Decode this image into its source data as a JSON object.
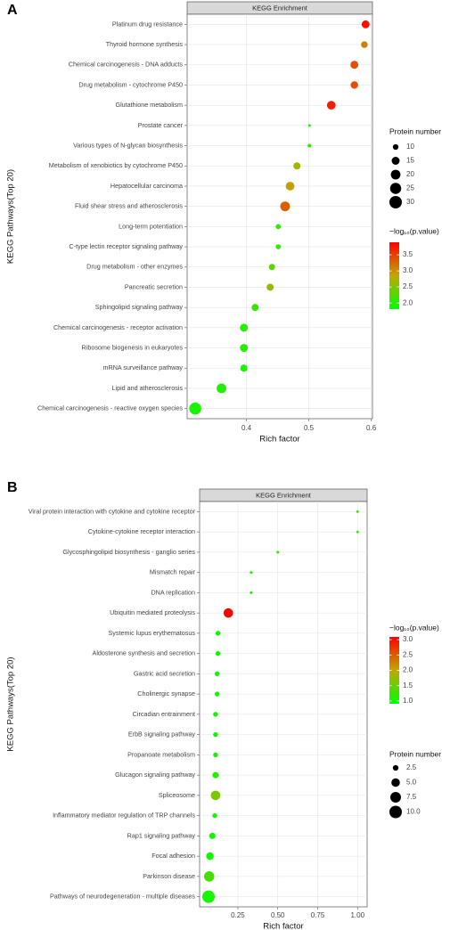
{
  "chart_data": [
    {
      "type": "scatter",
      "panel_label": "A",
      "title": "KEGG Enrichment",
      "x_label": "Rich factor",
      "y_label": "KEGG Pathways(Top 20)",
      "categories": [
        "Platinum drug resistance",
        "Thyroid hormone synthesis",
        "Chemical carcinogenesis - DNA adducts",
        "Drug metabolism - cytochrome P450",
        "Glutathione metabolism",
        "Prostate cancer",
        "Various types of N-glycan biosynthesis",
        "Metabolism of xenobiotics by cytochrome P450",
        "Hepatocellular carcinoma",
        "Fluid shear stress and atherosclerosis",
        "Long-term potentiation",
        "C-type lectin receptor signaling pathway",
        "Drug metabolism - other enzymes",
        "Pancreatic secretion",
        "Sphingolipid signaling pathway",
        "Chemical carcinogenesis - receptor activation",
        "Ribosome biogenesis in eukaryotes",
        "mRNA surveillance pathway",
        "Lipid and atherosclerosis",
        "Chemical carcinogenesis - reactive oxygen species"
      ],
      "x": [
        0.591,
        0.589,
        0.573,
        0.573,
        0.536,
        0.501,
        0.501,
        0.481,
        0.47,
        0.462,
        0.451,
        0.451,
        0.441,
        0.438,
        0.414,
        0.396,
        0.396,
        0.396,
        0.36,
        0.318
      ],
      "sizes": [
        15,
        12,
        15,
        14,
        17,
        6,
        7,
        13,
        17,
        20,
        9,
        9,
        11,
        13,
        13,
        15,
        15,
        13,
        20,
        28
      ],
      "p_values": [
        3.8,
        3.1,
        3.4,
        3.4,
        3.7,
        2.0,
        2.1,
        2.7,
        2.9,
        3.3,
        2.1,
        2.1,
        2.3,
        2.6,
        2.1,
        2.0,
        2.0,
        1.95,
        2.0,
        1.95
      ],
      "xlim": [
        0.305,
        0.602
      ],
      "xticks": [
        0.4,
        0.5,
        0.6
      ],
      "grid": true,
      "size_legend": {
        "title": "Protein number",
        "values": [
          10,
          15,
          20,
          25,
          30
        ]
      },
      "size_lim": [
        6,
        30
      ],
      "color_legend": {
        "title": "−log₁₀(p.value)",
        "ticks": [
          {
            "value": 2,
            "label": "2.0"
          },
          2.5,
          {
            "value": 3,
            "label": "3.0"
          },
          3.5
        ]
      },
      "clim": [
        1.81,
        3.89
      ],
      "color_low": "#00ff00",
      "color_mid": "#c0a800",
      "color_high": "#ff0000"
    },
    {
      "type": "scatter",
      "panel_label": "B",
      "title": "KEGG Enrichment",
      "x_label": "Rich factor",
      "y_label": "KEGG Pathways(Top 20)",
      "categories": [
        "Viral protein interaction with cytokine and cytokine receptor",
        "Cytokine-cytokine receptor interaction",
        "Glycosphingolipid biosynthesis - ganglio series",
        "Mismatch repair",
        "DNA replication",
        "Ubiquitin mediated proteolysis",
        "Systemic lupus erythematosus",
        "Aldosterone synthesis and secretion",
        "Gastric acid secretion",
        "Cholinergic synapse",
        "Circadian entrainment",
        "ErbB signaling pathway",
        "Propanoate metabolism",
        "Glucagon signaling pathway",
        "Spliceosome",
        "Inflammatory mediator regulation of TRP channels",
        "Rap1 signaling pathway",
        "Focal adhesion",
        "Parkinson disease",
        "Pathways of neurodegeneration - multiple diseases"
      ],
      "x": [
        1.0,
        1.0,
        0.5,
        0.333,
        0.333,
        0.19,
        0.125,
        0.125,
        0.12,
        0.12,
        0.11,
        0.11,
        0.11,
        0.11,
        0.11,
        0.105,
        0.09,
        0.075,
        0.07,
        0.066
      ],
      "sizes": [
        1,
        1,
        1,
        1,
        1,
        6,
        2,
        2,
        2,
        2,
        2,
        2,
        2,
        3,
        6,
        2,
        3,
        4,
        7,
        10
      ],
      "p_values": [
        1.4,
        1.4,
        1.2,
        1.1,
        1.1,
        3.1,
        1.0,
        1.0,
        1.0,
        1.0,
        1.0,
        1.0,
        1.0,
        1.1,
        1.6,
        1.0,
        1.0,
        1.0,
        1.3,
        1.05
      ],
      "xlim": [
        0.01,
        1.06
      ],
      "xticks": [
        {
          "value": 0.25,
          "label": "0.25"
        },
        {
          "value": 0.5,
          "label": "0.50"
        },
        {
          "value": 0.75,
          "label": "0.75"
        },
        {
          "value": 1,
          "label": "1.00"
        }
      ],
      "grid": true,
      "size_legend": {
        "title": "Protein number",
        "values": [
          {
            "value": 2.5,
            "label": "2.5"
          },
          {
            "value": 5,
            "label": "5.0"
          },
          {
            "value": 7.5,
            "label": "7.5"
          },
          {
            "value": 10,
            "label": "10.0"
          }
        ]
      },
      "size_lim": [
        1,
        10
      ],
      "color_legend": {
        "title": "−log₁₀(p.value)",
        "ticks": [
          {
            "value": 1,
            "label": "1.0"
          },
          1.5,
          {
            "value": 2,
            "label": "2.0"
          },
          2.5,
          {
            "value": 3,
            "label": "3.0"
          }
        ]
      },
      "clim": [
        0.91,
        3.09
      ],
      "color_low": "#00ff00",
      "color_mid": "#c0a800",
      "color_high": "#ff0000"
    }
  ]
}
